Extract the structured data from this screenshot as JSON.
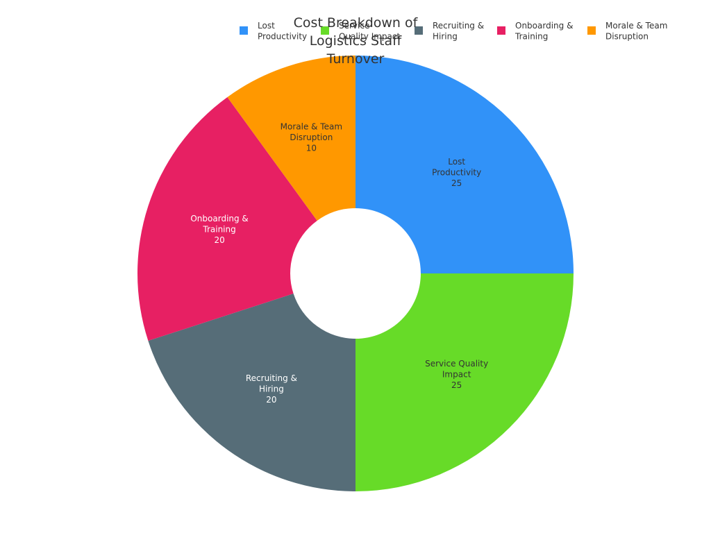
{
  "chart_data": {
    "type": "pie",
    "title": "Cost Breakdown of Logistics Staff Turnover",
    "hole": true,
    "legend_position": "top-right",
    "slices": [
      {
        "name": "Lost Productivity",
        "value": 25,
        "color": "#3192F8",
        "label_color": "#333333"
      },
      {
        "name": "Service Quality Impact",
        "value": 25,
        "color": "#67DB28",
        "label_color": "#333333"
      },
      {
        "name": "Recruiting & Hiring",
        "value": 20,
        "color": "#566D78",
        "label_color": "#ffffff"
      },
      {
        "name": "Onboarding & Training",
        "value": 20,
        "color": "#E72063",
        "label_color": "#ffffff"
      },
      {
        "name": "Morale & Team Disruption",
        "value": 10,
        "color": "#FF9800",
        "label_color": "#333333"
      }
    ]
  }
}
